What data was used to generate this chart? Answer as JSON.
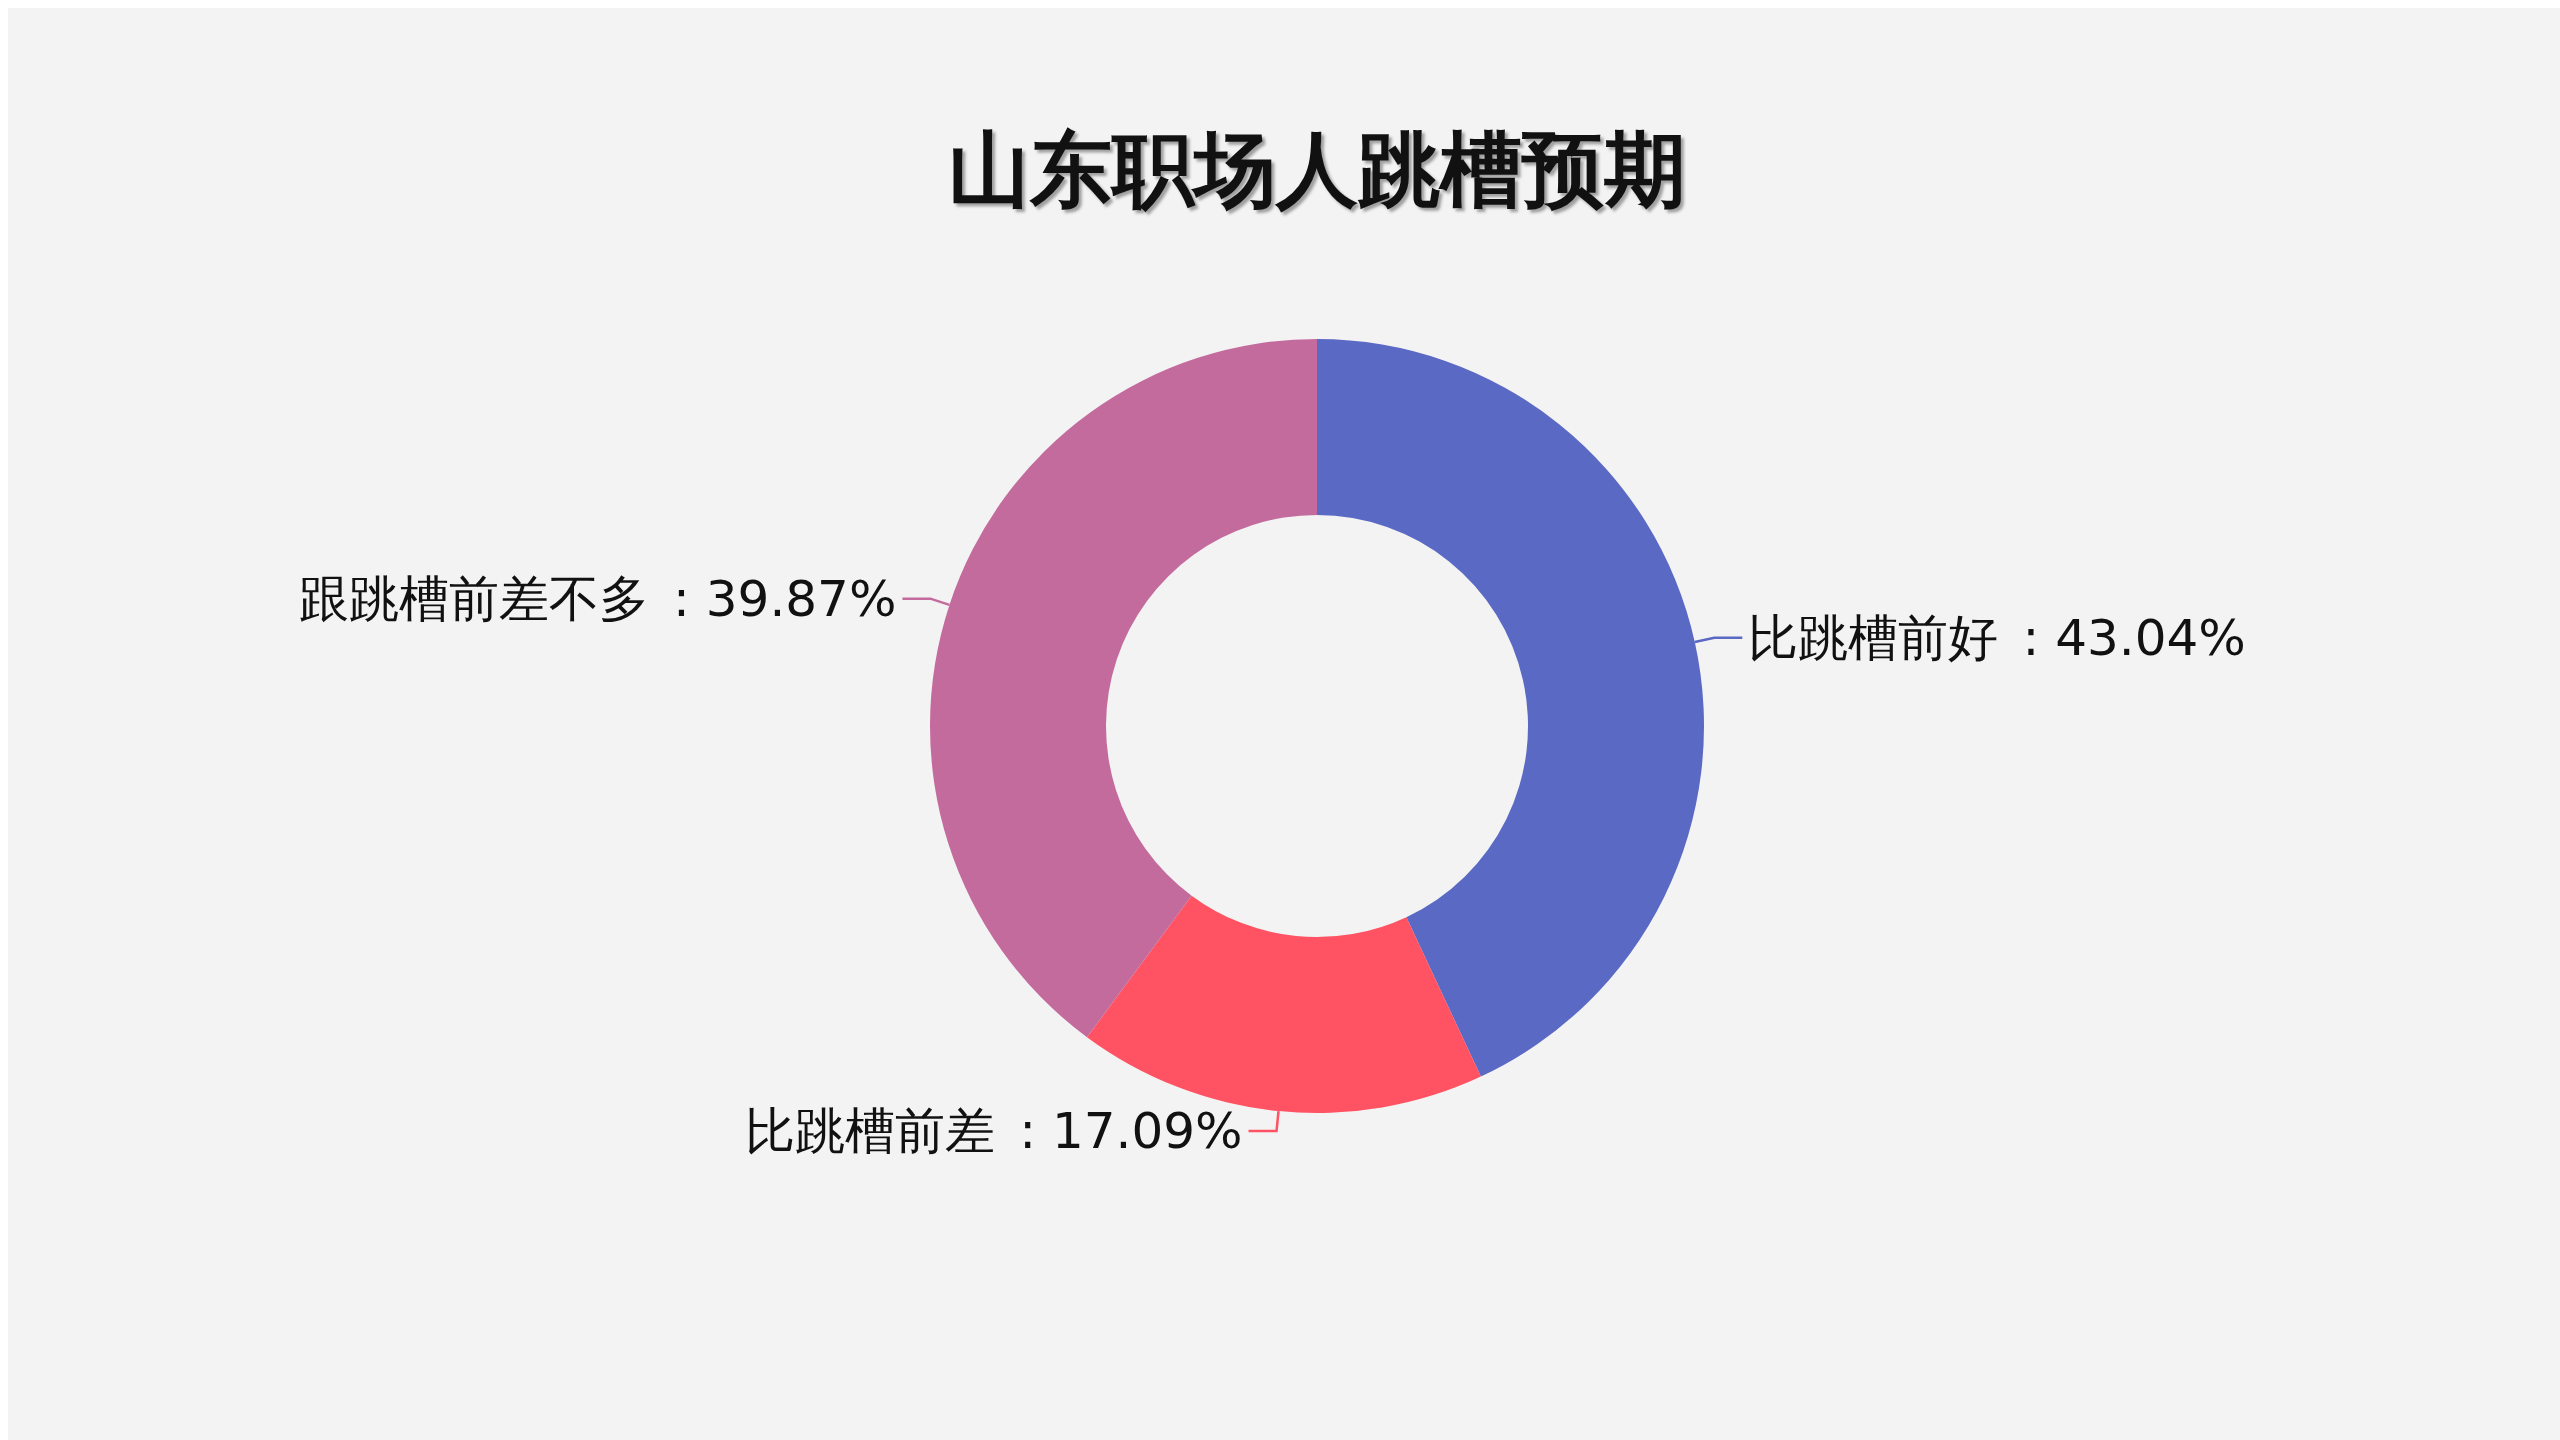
{
  "chart_data": {
    "type": "donut",
    "title": "山东职场人跳槽预期",
    "categories": [
      "比跳槽前好",
      "比跳槽前差",
      "跟跳槽前差不多"
    ],
    "values": [
      43.04,
      17.09,
      39.87
    ],
    "colors": [
      "#5a69c4",
      "#ff5263",
      "#c46b9e"
    ],
    "value_labels": [
      ": 43.04%",
      ": 17.09%",
      ": 39.87%"
    ]
  }
}
